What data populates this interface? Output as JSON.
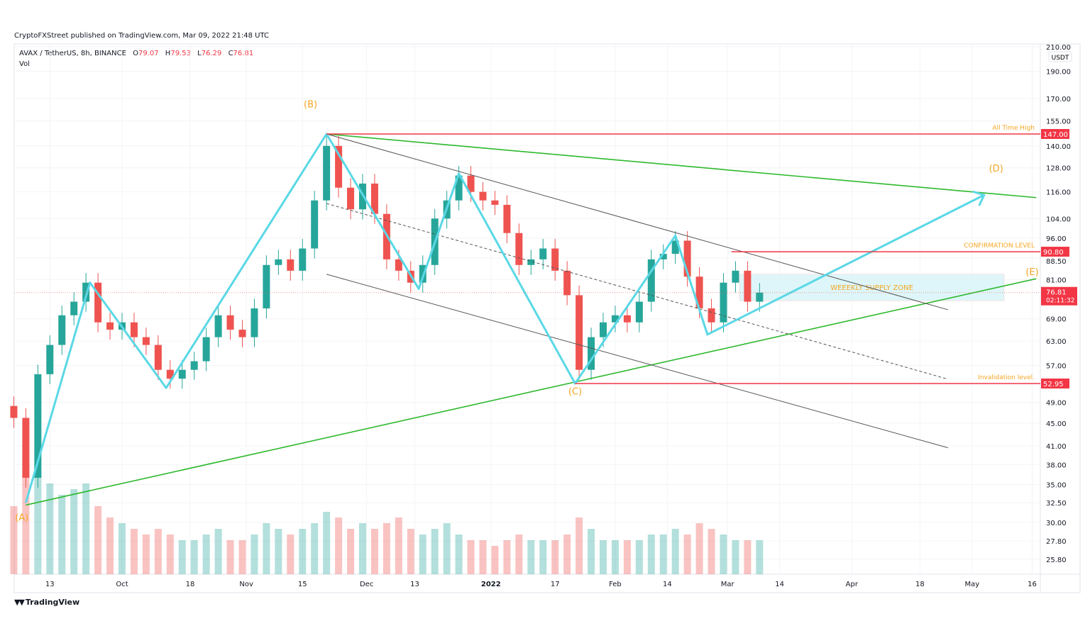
{
  "header": {
    "published": "CryptoFXStreet published on TradingView.com, Mar 09, 2022 21:48 UTC",
    "symbol": "AVAX / TetherUS, 8h, BINANCE",
    "ohlc": {
      "o_label": "O",
      "o": "79.07",
      "h_label": "H",
      "h": "79.53",
      "l_label": "L",
      "l": "76.29",
      "c_label": "C",
      "c": "76.81"
    },
    "volume_label": "Vol"
  },
  "footer": {
    "brand": "TradingView",
    "logo_icon": "tradingview-logo-icon"
  },
  "colors": {
    "up": "#26a69a",
    "down": "#ef5350",
    "zigzag": "#5ad8e6",
    "trend": "#2db92d",
    "channel": "#555555",
    "level": "#f23645",
    "label": "#f5a623",
    "zone": "#d6f4f8"
  },
  "chart_data": {
    "type": "candlestick",
    "scale": "log",
    "currency": "USDT",
    "ylim": [
      24,
      215
    ],
    "xlim": [
      "2021-09-02",
      "2022-05-17"
    ],
    "grid": true,
    "y_ticks": [
      "210.00",
      "190.00",
      "170.00",
      "155.00",
      "140.00",
      "128.00",
      "116.00",
      "104.00",
      "96.00",
      "88.50",
      "81.00",
      "69.00",
      "63.00",
      "57.00",
      "49.00",
      "45.00",
      "41.00",
      "38.00",
      "35.00",
      "32.50",
      "30.00",
      "27.80",
      "25.80"
    ],
    "x_ticks": [
      {
        "label": "13",
        "date": "2021-09-13"
      },
      {
        "label": "Oct",
        "date": "2021-10-01"
      },
      {
        "label": "18",
        "date": "2021-10-18"
      },
      {
        "label": "Nov",
        "date": "2021-11-01"
      },
      {
        "label": "15",
        "date": "2021-11-15"
      },
      {
        "label": "Dec",
        "date": "2021-12-01"
      },
      {
        "label": "13",
        "date": "2021-12-13"
      },
      {
        "label": "2022",
        "date": "2022-01-01"
      },
      {
        "label": "17",
        "date": "2022-01-17"
      },
      {
        "label": "Feb",
        "date": "2022-02-01"
      },
      {
        "label": "14",
        "date": "2022-02-14"
      },
      {
        "label": "Mar",
        "date": "2022-03-01"
      },
      {
        "label": "14",
        "date": "2022-03-14"
      },
      {
        "label": "Apr",
        "date": "2022-04-01"
      },
      {
        "label": "18",
        "date": "2022-04-18"
      },
      {
        "label": "May",
        "date": "2022-05-01"
      },
      {
        "label": "16",
        "date": "2022-05-16"
      }
    ],
    "closes": [
      [
        "2021-09-04",
        46
      ],
      [
        "2021-09-07",
        36
      ],
      [
        "2021-09-10",
        55
      ],
      [
        "2021-09-13",
        62
      ],
      [
        "2021-09-16",
        70
      ],
      [
        "2021-09-19",
        74
      ],
      [
        "2021-09-22",
        80
      ],
      [
        "2021-09-25",
        68
      ],
      [
        "2021-09-28",
        66
      ],
      [
        "2021-10-01",
        68
      ],
      [
        "2021-10-04",
        64
      ],
      [
        "2021-10-07",
        62
      ],
      [
        "2021-10-10",
        56
      ],
      [
        "2021-10-13",
        54
      ],
      [
        "2021-10-16",
        56
      ],
      [
        "2021-10-19",
        58
      ],
      [
        "2021-10-22",
        64
      ],
      [
        "2021-10-25",
        70
      ],
      [
        "2021-10-28",
        66
      ],
      [
        "2021-10-31",
        64
      ],
      [
        "2021-11-03",
        72
      ],
      [
        "2021-11-06",
        86
      ],
      [
        "2021-11-09",
        88
      ],
      [
        "2021-11-12",
        84
      ],
      [
        "2021-11-15",
        92
      ],
      [
        "2021-11-18",
        112
      ],
      [
        "2021-11-21",
        140
      ],
      [
        "2021-11-24",
        118
      ],
      [
        "2021-11-27",
        108
      ],
      [
        "2021-11-30",
        120
      ],
      [
        "2021-12-03",
        106
      ],
      [
        "2021-12-06",
        88
      ],
      [
        "2021-12-09",
        84
      ],
      [
        "2021-12-12",
        80
      ],
      [
        "2021-12-15",
        86
      ],
      [
        "2021-12-18",
        104
      ],
      [
        "2021-12-21",
        112
      ],
      [
        "2021-12-24",
        124
      ],
      [
        "2021-12-27",
        116
      ],
      [
        "2021-12-30",
        112
      ],
      [
        "2022-01-02",
        110
      ],
      [
        "2022-01-05",
        98
      ],
      [
        "2022-01-08",
        86
      ],
      [
        "2022-01-11",
        88
      ],
      [
        "2022-01-14",
        92
      ],
      [
        "2022-01-17",
        84
      ],
      [
        "2022-01-20",
        76
      ],
      [
        "2022-01-23",
        56
      ],
      [
        "2022-01-26",
        64
      ],
      [
        "2022-01-29",
        68
      ],
      [
        "2022-02-01",
        70
      ],
      [
        "2022-02-04",
        68
      ],
      [
        "2022-02-07",
        74
      ],
      [
        "2022-02-10",
        88
      ],
      [
        "2022-02-13",
        90
      ],
      [
        "2022-02-16",
        95
      ],
      [
        "2022-02-19",
        82
      ],
      [
        "2022-02-22",
        72
      ],
      [
        "2022-02-25",
        68
      ],
      [
        "2022-02-28",
        80
      ],
      [
        "2022-03-03",
        84
      ],
      [
        "2022-03-06",
        74
      ],
      [
        "2022-03-09",
        76.81
      ]
    ],
    "volume_rel": [
      0.6,
      1.0,
      0.9,
      0.8,
      0.7,
      0.75,
      0.8,
      0.6,
      0.5,
      0.45,
      0.4,
      0.35,
      0.4,
      0.35,
      0.3,
      0.3,
      0.35,
      0.4,
      0.3,
      0.3,
      0.35,
      0.45,
      0.4,
      0.35,
      0.4,
      0.45,
      0.55,
      0.5,
      0.4,
      0.45,
      0.4,
      0.45,
      0.5,
      0.4,
      0.35,
      0.4,
      0.45,
      0.35,
      0.3,
      0.3,
      0.25,
      0.3,
      0.35,
      0.3,
      0.3,
      0.3,
      0.35,
      0.5,
      0.4,
      0.3,
      0.3,
      0.3,
      0.3,
      0.35,
      0.35,
      0.4,
      0.35,
      0.45,
      0.4,
      0.35,
      0.3,
      0.3,
      0.3
    ],
    "last_price": {
      "value": "76.81",
      "countdown": "02:11:32"
    },
    "levels": [
      {
        "name": "all-time-high",
        "price": 147.0,
        "label": "All Time High",
        "tag": "147.00",
        "from": "2021-11-21"
      },
      {
        "name": "confirmation-level",
        "price": 90.8,
        "label": "CONFIRMATION LEVEL",
        "tag": "90.80",
        "from": "2022-03-02"
      },
      {
        "name": "invalidation-level",
        "price": 52.95,
        "label": "Invalidation level.",
        "tag": "52.95",
        "from": "2022-01-22"
      }
    ],
    "zone": {
      "label": "WEEEKLY SUPPLY ZONE",
      "from": "2022-03-04",
      "to": "2022-05-09",
      "top": 82.8,
      "bottom": 74.3
    },
    "zigzag": [
      [
        "2021-09-07",
        32.5
      ],
      [
        "2021-09-23",
        80
      ],
      [
        "2021-10-12",
        52
      ],
      [
        "2021-11-21",
        147
      ],
      [
        "2021-12-14",
        78
      ],
      [
        "2021-12-24",
        125
      ],
      [
        "2022-01-22",
        52.95
      ],
      [
        "2022-02-16",
        97
      ],
      [
        "2022-02-24",
        64.7
      ],
      [
        "2022-05-04",
        114.5
      ]
    ],
    "trendlines": [
      {
        "name": "triangle-upper",
        "color": "trend",
        "pts": [
          [
            "2021-11-21",
            147
          ],
          [
            "2022-05-17",
            113.3
          ]
        ]
      },
      {
        "name": "triangle-lower",
        "color": "trend",
        "pts": [
          [
            "2021-09-07",
            32.2
          ],
          [
            "2022-05-17",
            81.3
          ]
        ]
      },
      {
        "name": "channel-upper",
        "color": "channel",
        "pts": [
          [
            "2021-11-21",
            147
          ],
          [
            "2022-04-25",
            71.6
          ]
        ]
      },
      {
        "name": "channel-lower",
        "color": "channel",
        "pts": [
          [
            "2021-11-21",
            82.8
          ],
          [
            "2022-04-25",
            40.7
          ]
        ]
      },
      {
        "name": "channel-mid",
        "color": "channel",
        "dashed": true,
        "pts": [
          [
            "2021-11-21",
            110.6
          ],
          [
            "2022-04-25",
            53.9
          ]
        ]
      }
    ],
    "wave_labels": [
      {
        "text": "(A)",
        "date": "2021-09-06",
        "price": 30.2
      },
      {
        "text": "(B)",
        "date": "2021-11-17",
        "price": 164
      },
      {
        "text": "(C)",
        "date": "2022-01-22",
        "price": 50.6
      },
      {
        "text": "(D)",
        "date": "2022-05-07",
        "price": 126
      },
      {
        "text": "(E)",
        "date": "2022-05-16",
        "price": 82.5
      }
    ]
  }
}
